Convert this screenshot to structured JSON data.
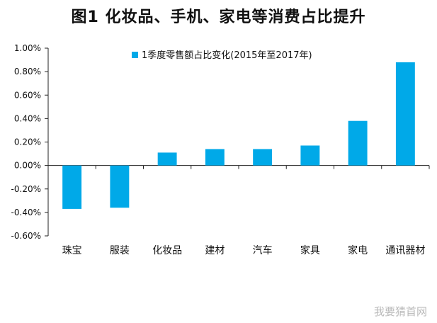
{
  "title": "图1  化妆品、手机、家电等消费占比提升",
  "watermark": "我要猜首网",
  "colors": {
    "bar": "#00a9e8",
    "axis": "#222222"
  },
  "chart_data": {
    "type": "bar",
    "categories": [
      "珠宝",
      "服装",
      "化妆品",
      "建材",
      "汽车",
      "家具",
      "家电",
      "通讯器材"
    ],
    "series": [
      {
        "name": "1季度零售额占比变化(2015年至2017年)",
        "values": [
          -0.37,
          -0.36,
          0.11,
          0.14,
          0.14,
          0.17,
          0.38,
          0.88
        ]
      }
    ],
    "unit": "%",
    "ylim": [
      -0.6,
      1.0
    ],
    "yticks": [
      "1.00%",
      "0.80%",
      "0.60%",
      "0.40%",
      "0.20%",
      "0.00%",
      "-0.20%",
      "-0.40%",
      "-0.60%"
    ],
    "ytick_values": [
      1.0,
      0.8,
      0.6,
      0.4,
      0.2,
      0.0,
      -0.2,
      -0.4,
      -0.6
    ],
    "legend_position": "top",
    "grid": false
  }
}
